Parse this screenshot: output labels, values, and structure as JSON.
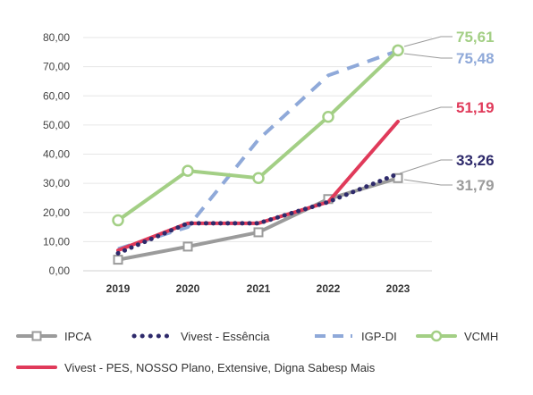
{
  "chart_data": {
    "type": "line",
    "categories": [
      "2019",
      "2020",
      "2021",
      "2022",
      "2023"
    ],
    "ylim": [
      0,
      80
    ],
    "yticks": [
      "0,00",
      "10,00",
      "20,00",
      "30,00",
      "40,00",
      "50,00",
      "60,00",
      "70,00",
      "80,00"
    ],
    "grid": true,
    "legend_position": "bottom",
    "series": [
      {
        "key": "ipca",
        "name": "IPCA",
        "color": "#9b9b9b",
        "style": "solid-square-markers",
        "values": [
          3.8,
          8.3,
          13.2,
          24.6,
          31.79
        ],
        "end_label": "31,79"
      },
      {
        "key": "vivest_essencia",
        "name": "Vivest - Essência",
        "color": "#2e2a6b",
        "style": "dotted",
        "values": [
          6.0,
          16.3,
          16.3,
          23.6,
          33.26
        ],
        "end_label": "33,26"
      },
      {
        "key": "igp_di",
        "name": "IGP-DI",
        "color": "#8fa9d9",
        "style": "dashed",
        "values": [
          7.5,
          15.0,
          45.0,
          67.0,
          75.48
        ],
        "end_label": "75,48"
      },
      {
        "key": "vcmh",
        "name": "VCMH",
        "color": "#a3cf85",
        "style": "solid-circle-markers",
        "values": [
          17.3,
          34.3,
          31.8,
          52.8,
          75.61
        ],
        "end_label": "75,61"
      },
      {
        "key": "vivest_pes",
        "name": "Vivest - PES, NOSSO Plano, Extensive, Digna Sabesp Mais",
        "color": "#e03a5a",
        "style": "solid",
        "values": [
          7.0,
          16.3,
          16.3,
          23.6,
          51.19
        ],
        "end_label": "51,19"
      }
    ]
  }
}
